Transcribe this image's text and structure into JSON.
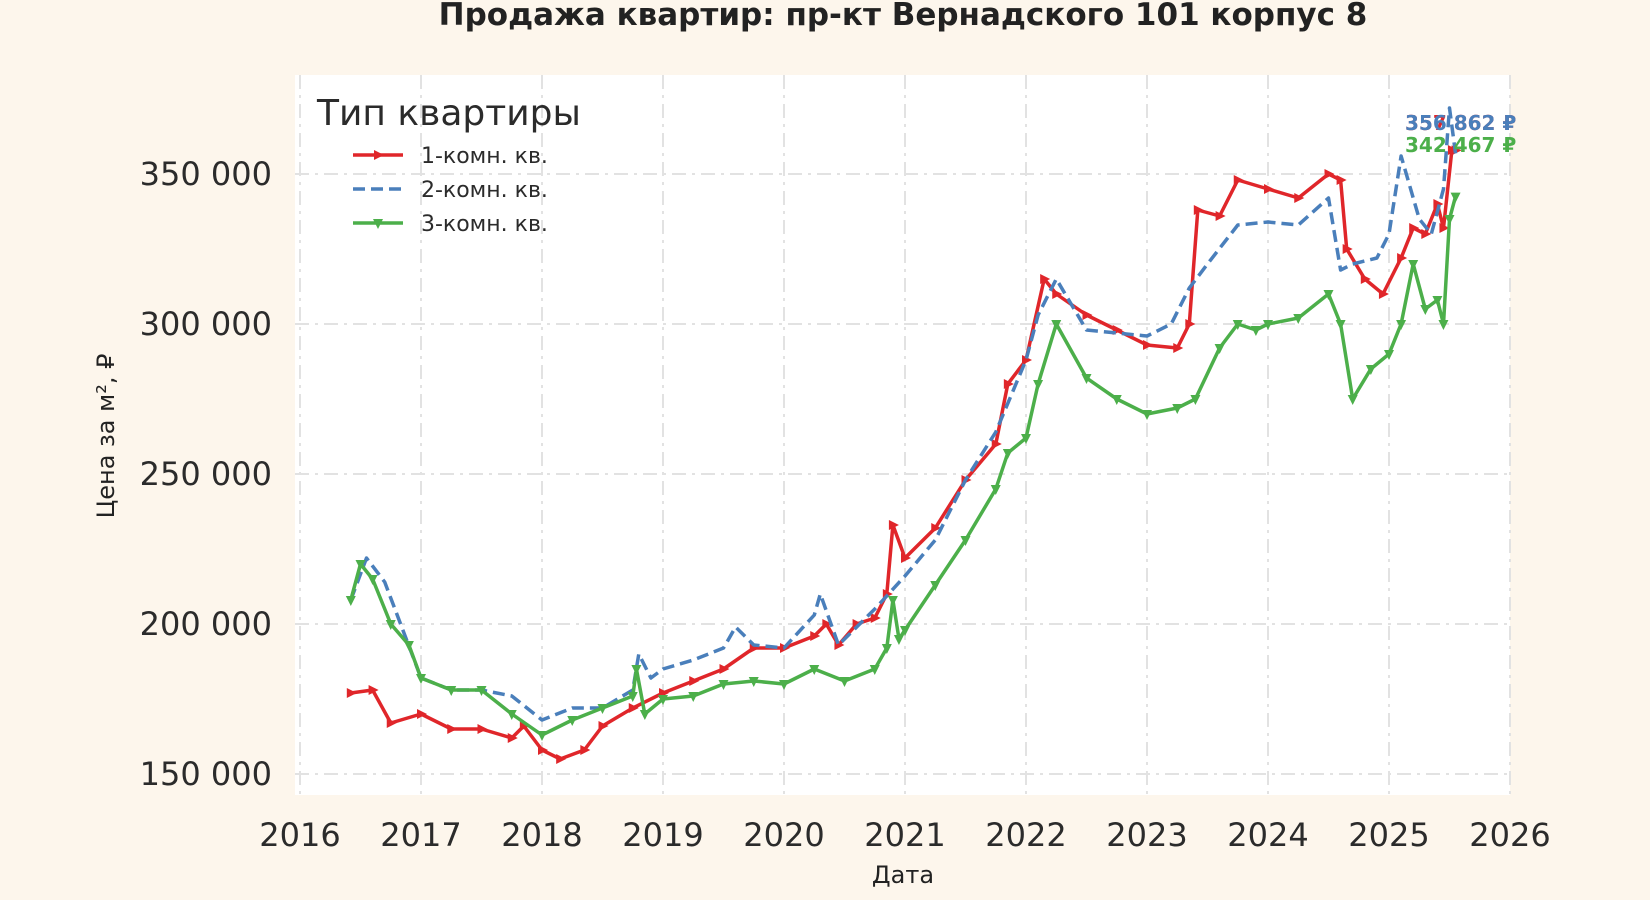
{
  "chart_data": {
    "type": "line",
    "title": "Продажа квартир: пр-кт Вернадского 101 корпус 8",
    "xlabel": "Дата",
    "ylabel": "Цена за м², ₽",
    "xlim": [
      2016,
      2026
    ],
    "ylim": [
      143000,
      383000
    ],
    "x_ticks": [
      "2016",
      "2017",
      "2018",
      "2019",
      "2020",
      "2021",
      "2022",
      "2023",
      "2024",
      "2025",
      "2026"
    ],
    "y_ticks": [
      "150 000",
      "200 000",
      "250 000",
      "300 000",
      "350 000"
    ],
    "y_tick_values": [
      150000,
      200000,
      250000,
      300000,
      350000
    ],
    "grid": true,
    "legend": {
      "title": "Тип квартиры",
      "position": "top-left"
    },
    "series": [
      {
        "name": "1-комн. кв.",
        "color": "#e0262a",
        "line_style": "solid",
        "marker": "triangle-right",
        "end_label": "357 862 ₽",
        "x": [
          2016.42,
          2016.6,
          2016.75,
          2017.0,
          2017.25,
          2017.5,
          2017.75,
          2017.85,
          2018.0,
          2018.15,
          2018.35,
          2018.5,
          2018.75,
          2019.0,
          2019.25,
          2019.5,
          2019.75,
          2020.0,
          2020.25,
          2020.35,
          2020.45,
          2020.6,
          2020.75,
          2020.85,
          2020.9,
          2021.0,
          2021.25,
          2021.5,
          2021.75,
          2021.85,
          2022.0,
          2022.15,
          2022.25,
          2022.5,
          2022.75,
          2023.0,
          2023.25,
          2023.35,
          2023.42,
          2023.6,
          2023.75,
          2024.0,
          2024.25,
          2024.5,
          2024.6,
          2024.65,
          2024.8,
          2024.95,
          2025.1,
          2025.2,
          2025.3,
          2025.4,
          2025.45,
          2025.52,
          2025.55
        ],
        "y": [
          177000,
          178000,
          167000,
          170000,
          165000,
          165000,
          162000,
          166000,
          158000,
          155000,
          158000,
          166000,
          172000,
          177000,
          181000,
          185000,
          192000,
          192000,
          196000,
          200000,
          193000,
          200000,
          202000,
          210000,
          233000,
          222000,
          232000,
          248000,
          260000,
          280000,
          288000,
          315000,
          310000,
          303000,
          298000,
          293000,
          292000,
          300000,
          338000,
          336000,
          348000,
          345000,
          342000,
          350000,
          348000,
          325000,
          315000,
          310000,
          322000,
          332000,
          330000,
          340000,
          332000,
          358000,
          357862
        ]
      },
      {
        "name": "2-комн. кв.",
        "color": "#4a7fbb",
        "line_style": "dashed",
        "marker": "none",
        "end_label": "356 862 ₽",
        "x": [
          2016.42,
          2016.55,
          2016.7,
          2017.0,
          2017.25,
          2017.5,
          2017.75,
          2018.0,
          2018.25,
          2018.5,
          2018.75,
          2018.8,
          2018.9,
          2019.0,
          2019.25,
          2019.5,
          2019.6,
          2019.75,
          2020.0,
          2020.25,
          2020.3,
          2020.45,
          2020.75,
          2021.0,
          2021.25,
          2021.5,
          2021.75,
          2022.0,
          2022.1,
          2022.25,
          2022.5,
          2022.75,
          2023.0,
          2023.2,
          2023.35,
          2023.5,
          2023.75,
          2024.0,
          2024.25,
          2024.5,
          2024.6,
          2024.7,
          2024.9,
          2025.0,
          2025.1,
          2025.25,
          2025.35,
          2025.45,
          2025.5,
          2025.55
        ],
        "y": [
          208000,
          222000,
          214000,
          182000,
          178000,
          178000,
          176000,
          168000,
          172000,
          172000,
          178000,
          190000,
          182000,
          185000,
          188000,
          192000,
          199000,
          193000,
          192000,
          203000,
          210000,
          193000,
          205000,
          216000,
          228000,
          248000,
          264000,
          288000,
          303000,
          315000,
          298000,
          297000,
          296000,
          300000,
          312000,
          320000,
          333000,
          334000,
          333000,
          342000,
          318000,
          320000,
          322000,
          330000,
          356000,
          335000,
          330000,
          345000,
          372000,
          356862
        ]
      },
      {
        "name": "3-комн. кв.",
        "color": "#4caf4a",
        "line_style": "solid",
        "marker": "triangle-down",
        "end_label": "342 467 ₽",
        "x": [
          2016.42,
          2016.5,
          2016.6,
          2016.75,
          2016.9,
          2017.0,
          2017.25,
          2017.5,
          2017.75,
          2018.0,
          2018.25,
          2018.5,
          2018.75,
          2018.78,
          2018.85,
          2019.0,
          2019.25,
          2019.5,
          2019.75,
          2020.0,
          2020.25,
          2020.5,
          2020.75,
          2020.85,
          2020.9,
          2020.95,
          2021.0,
          2021.25,
          2021.5,
          2021.75,
          2021.85,
          2022.0,
          2022.1,
          2022.25,
          2022.5,
          2022.75,
          2023.0,
          2023.25,
          2023.4,
          2023.6,
          2023.75,
          2023.9,
          2024.0,
          2024.25,
          2024.5,
          2024.6,
          2024.7,
          2024.85,
          2025.0,
          2025.1,
          2025.2,
          2025.3,
          2025.4,
          2025.45,
          2025.5,
          2025.55
        ],
        "y": [
          208000,
          220000,
          215000,
          200000,
          193000,
          182000,
          178000,
          178000,
          170000,
          163000,
          168000,
          172000,
          176000,
          185000,
          170000,
          175000,
          176000,
          180000,
          181000,
          180000,
          185000,
          181000,
          185000,
          192000,
          208000,
          195000,
          198000,
          213000,
          228000,
          245000,
          257000,
          262000,
          280000,
          300000,
          282000,
          275000,
          270000,
          272000,
          275000,
          292000,
          300000,
          298000,
          300000,
          302000,
          310000,
          300000,
          275000,
          285000,
          290000,
          300000,
          320000,
          305000,
          308000,
          300000,
          335000,
          342467
        ]
      }
    ]
  }
}
